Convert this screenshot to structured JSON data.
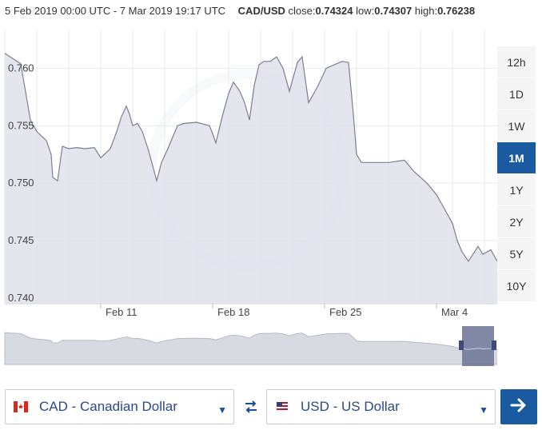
{
  "header": {
    "range_text": "5 Feb 2019 00:00 UTC - 7 Mar 2019 19:17 UTC",
    "pair": "CAD/USD",
    "close_label": "close:",
    "close_value": "0.74324",
    "low_label": "low:",
    "low_value": "0.74307",
    "high_label": "high:",
    "high_value": "0.76238"
  },
  "range_buttons": [
    {
      "label": "12h",
      "active": false
    },
    {
      "label": "1D",
      "active": false
    },
    {
      "label": "1W",
      "active": false
    },
    {
      "label": "1M",
      "active": true
    },
    {
      "label": "1Y",
      "active": false
    },
    {
      "label": "2Y",
      "active": false
    },
    {
      "label": "5Y",
      "active": false
    },
    {
      "label": "10Y",
      "active": false
    }
  ],
  "from_currency": {
    "label": "CAD - Canadian Dollar",
    "flag": "canada-flag-icon"
  },
  "to_currency": {
    "label": "USD - US Dollar",
    "flag": "us-flag-icon"
  },
  "colors": {
    "accent": "#1a5aa0",
    "area_fill": "#dfe1ea",
    "line": "#7a7f96",
    "currency_text": "#2a4a86"
  },
  "chart_data": {
    "type": "area",
    "ylim": [
      0.7395,
      0.7633
    ],
    "yticks": [
      0.74,
      0.745,
      0.75,
      0.755,
      0.76
    ],
    "ytick_labels": [
      "0.740",
      "0.745",
      "0.750",
      "0.755",
      "0.760"
    ],
    "xlim": [
      0,
      30.8
    ],
    "xticks": [
      {
        "label": "Feb 11",
        "x": 6
      },
      {
        "label": "Feb 18",
        "x": 13
      },
      {
        "label": "Feb 25",
        "x": 20
      },
      {
        "label": "Mar 4",
        "x": 27
      }
    ],
    "x": [
      0,
      1.0,
      1.6,
      2.0,
      2.6,
      2.9,
      3.0,
      3.3,
      3.6,
      4.0,
      4.5,
      5.0,
      5.6,
      6.0,
      6.6,
      7.0,
      7.3,
      7.6,
      7.8,
      8.0,
      8.3,
      8.6,
      9.0,
      9.5,
      9.8,
      10.2,
      10.5,
      10.8,
      11.2,
      12.0,
      12.8,
      13.0,
      13.2,
      13.6,
      14.0,
      14.3,
      14.7,
      15.0,
      15.3,
      15.6,
      15.9,
      16.2,
      16.6,
      17.0,
      17.4,
      17.8,
      18.3,
      18.6,
      19.0,
      19.6,
      20.1,
      20.6,
      21.1,
      21.5,
      21.8,
      22.0,
      22.3,
      22.6,
      23.1,
      24.0,
      25.0,
      25.6,
      26.4,
      27.0,
      27.6,
      28.0,
      28.3,
      28.6,
      29.0,
      29.6,
      29.9,
      30.4,
      30.8
    ],
    "y": [
      0.7613,
      0.7604,
      0.7555,
      0.7545,
      0.7537,
      0.7525,
      0.7505,
      0.7502,
      0.7532,
      0.753,
      0.7531,
      0.753,
      0.7531,
      0.7522,
      0.753,
      0.7545,
      0.7558,
      0.7567,
      0.756,
      0.755,
      0.7552,
      0.7545,
      0.7528,
      0.7502,
      0.7518,
      0.753,
      0.754,
      0.755,
      0.7552,
      0.7553,
      0.755,
      0.7543,
      0.7535,
      0.7558,
      0.7578,
      0.7588,
      0.758,
      0.757,
      0.7555,
      0.7585,
      0.7603,
      0.7606,
      0.7606,
      0.761,
      0.76,
      0.758,
      0.7605,
      0.761,
      0.757,
      0.7585,
      0.76,
      0.7603,
      0.7606,
      0.7605,
      0.756,
      0.7525,
      0.7518,
      0.7518,
      0.7518,
      0.7518,
      0.752,
      0.751,
      0.75,
      0.749,
      0.7475,
      0.7465,
      0.745,
      0.744,
      0.7432,
      0.7445,
      0.7438,
      0.7442,
      0.7432
    ]
  }
}
